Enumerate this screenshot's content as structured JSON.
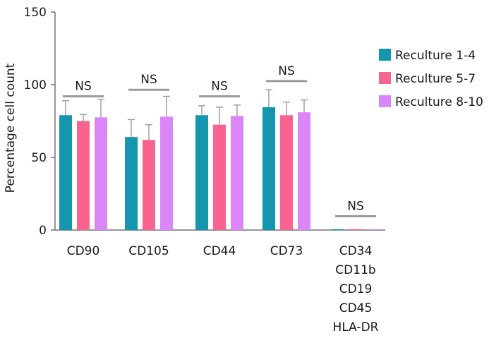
{
  "chart_data": {
    "type": "bar",
    "title": "",
    "xlabel": "",
    "ylabel": "Percentage cell count",
    "ylim": [
      0,
      150
    ],
    "yticks": [
      0,
      50,
      100,
      150
    ],
    "grid": false,
    "legend_position": "right",
    "categories": [
      "CD90",
      "CD105",
      "CD44",
      "CD73",
      "CD34\nCD11b\nCD19\nCD45\nHLA-DR"
    ],
    "category_lines": [
      [
        "CD90"
      ],
      [
        "CD105"
      ],
      [
        "CD44"
      ],
      [
        "CD73"
      ],
      [
        "CD34",
        "CD11b",
        "CD19",
        "CD45",
        "HLA-DR"
      ]
    ],
    "series": [
      {
        "name": "Reculture 1-4",
        "color": "#1497AE",
        "values": [
          79,
          64,
          79,
          84.5,
          0.5
        ],
        "errors": [
          10,
          12,
          6.5,
          12,
          0.3
        ]
      },
      {
        "name": "Reculture 5-7",
        "color": "#F8638F",
        "values": [
          75,
          62,
          72.5,
          79,
          0.4
        ],
        "errors": [
          4.5,
          10.5,
          12,
          9,
          0.3
        ]
      },
      {
        "name": "Reculture 8-10",
        "color": "#DB86F6",
        "values": [
          77.5,
          78,
          78.5,
          81,
          0.5
        ],
        "errors": [
          12.5,
          14,
          7.5,
          8.5,
          0.3
        ]
      }
    ],
    "annotations": [
      {
        "category_index": 0,
        "text": "NS",
        "y": 92
      },
      {
        "category_index": 1,
        "text": "NS",
        "y": 96.5
      },
      {
        "category_index": 2,
        "text": "NS",
        "y": 92
      },
      {
        "category_index": 3,
        "text": "NS",
        "y": 102.5
      },
      {
        "category_index": 4,
        "text": "NS",
        "y": 9.5
      }
    ]
  }
}
